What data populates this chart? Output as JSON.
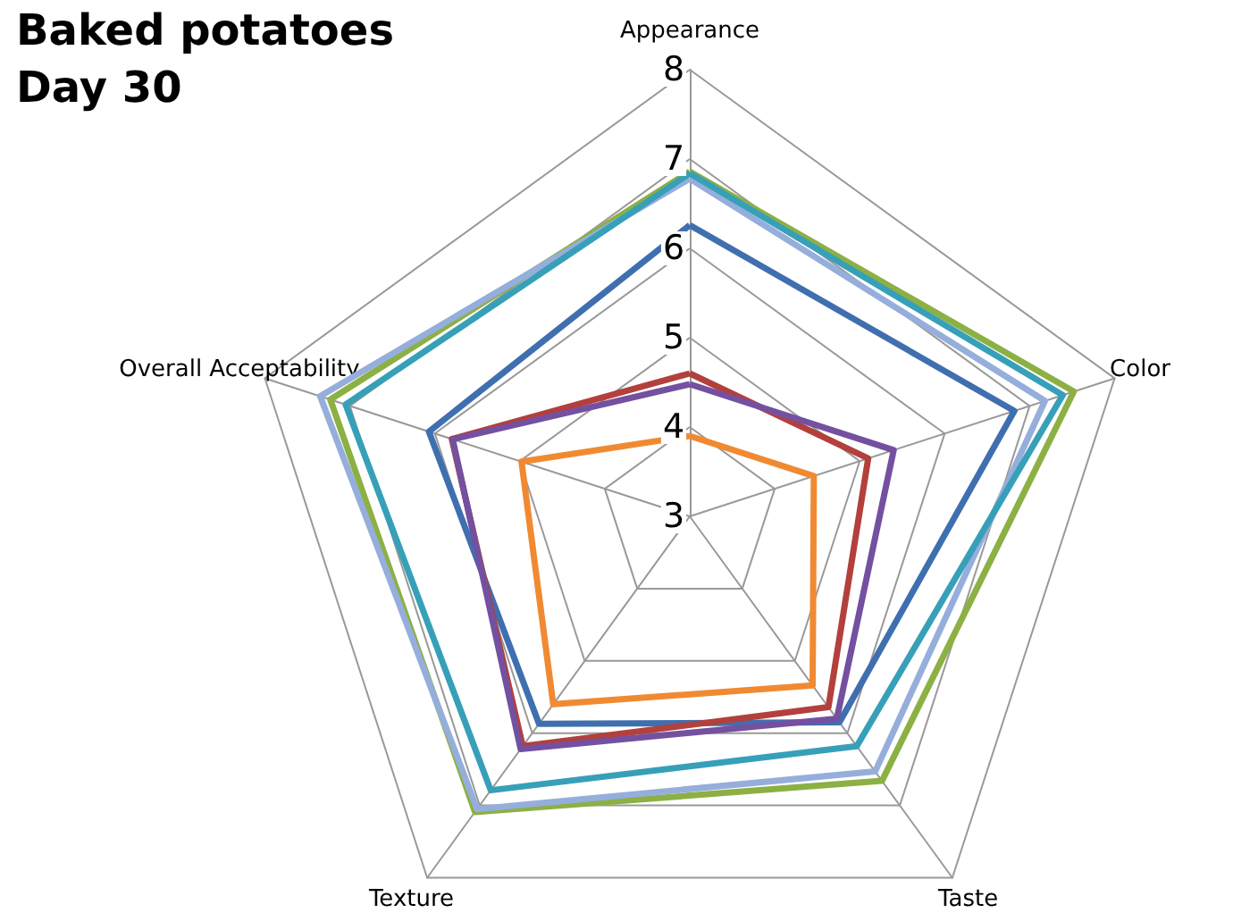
{
  "chart_data": {
    "type": "radar",
    "title": "Baked potatoes",
    "subtitle": "Day 30",
    "categories": [
      "Appearance",
      "Color",
      "Taste",
      "Texture",
      "Overall Acceptability"
    ],
    "ylim": [
      3,
      8
    ],
    "yticks": [
      3,
      4,
      5,
      6,
      7,
      8
    ],
    "grid": true,
    "series": [
      {
        "color": "#8cb044",
        "values": [
          6.86,
          7.52,
          6.66,
          7.09,
          7.23
        ]
      },
      {
        "color": "#95aedb",
        "values": [
          6.78,
          7.18,
          6.53,
          7.05,
          7.35
        ]
      },
      {
        "color": "#37a0b8",
        "values": [
          6.84,
          7.39,
          6.18,
          6.79,
          7.05
        ]
      },
      {
        "color": "#3f6faf",
        "values": [
          6.26,
          6.82,
          5.85,
          5.87,
          6.07
        ]
      },
      {
        "color": "#b2403c",
        "values": [
          4.6,
          5.1,
          5.64,
          6.18,
          5.8
        ]
      },
      {
        "color": "#7450a0",
        "values": [
          4.48,
          5.4,
          5.8,
          6.22,
          5.79
        ]
      },
      {
        "color": "#f08a32",
        "values": [
          3.9,
          4.46,
          5.34,
          5.6,
          4.98
        ]
      }
    ]
  }
}
